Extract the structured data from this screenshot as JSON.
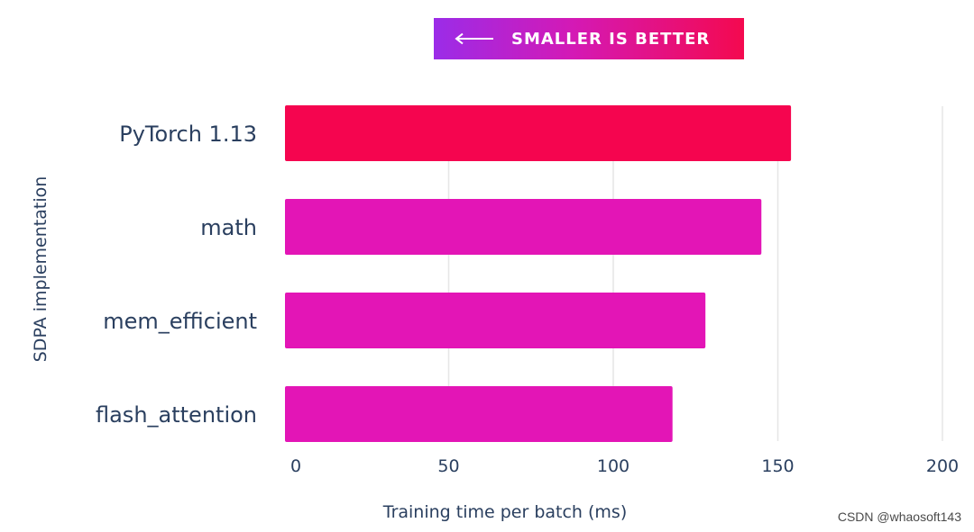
{
  "badge": {
    "text": "SMALLER IS BETTER",
    "arrow_icon": "arrow-left-icon"
  },
  "watermark": "CSDN @whaosoft143",
  "chart_data": {
    "type": "bar",
    "orientation": "horizontal",
    "categories": [
      "PyTorch 1.13",
      "math",
      "mem_efficient",
      "flash_attention"
    ],
    "values": [
      154,
      145,
      128,
      118
    ],
    "colors": [
      "#f5054f",
      "#e315b6",
      "#e315b6",
      "#e315b6"
    ],
    "xlabel": "Training time per batch (ms)",
    "ylabel": "SDPA implementation",
    "xlim": [
      0,
      200
    ],
    "xticks": [
      0,
      50,
      100,
      150,
      200
    ],
    "grid": true
  }
}
